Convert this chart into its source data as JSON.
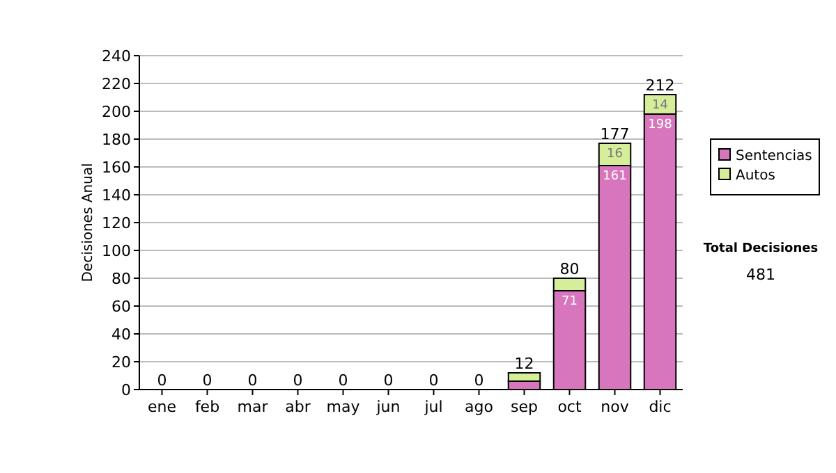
{
  "chart_data": {
    "type": "bar",
    "stacked": true,
    "ylabel": "Decisiones Anual",
    "categories": [
      "ene",
      "feb",
      "mar",
      "abr",
      "may",
      "jun",
      "jul",
      "ago",
      "sep",
      "oct",
      "nov",
      "dic"
    ],
    "series": [
      {
        "name": "Sentencias",
        "color": "#d776bd",
        "values": [
          0,
          0,
          0,
          0,
          0,
          0,
          0,
          0,
          6,
          71,
          161,
          198
        ],
        "value_labels": [
          null,
          null,
          null,
          null,
          null,
          null,
          null,
          null,
          null,
          "71",
          "161",
          "198"
        ]
      },
      {
        "name": "Autos",
        "color": "#d6ee9a",
        "values": [
          0,
          0,
          0,
          0,
          0,
          0,
          0,
          0,
          6,
          9,
          16,
          14
        ],
        "value_labels": [
          null,
          null,
          null,
          null,
          null,
          null,
          null,
          null,
          null,
          null,
          "16",
          "14"
        ]
      }
    ],
    "totals": [
      "0",
      "0",
      "0",
      "0",
      "0",
      "0",
      "0",
      "0",
      "12",
      "80",
      "177",
      "212"
    ],
    "ylim": [
      0,
      240
    ],
    "yticks": [
      0,
      20,
      40,
      60,
      80,
      100,
      120,
      140,
      160,
      180,
      200,
      220,
      240
    ],
    "grid": "y",
    "legend": "right",
    "annotations": [
      "Total Decisiones",
      "481"
    ]
  }
}
